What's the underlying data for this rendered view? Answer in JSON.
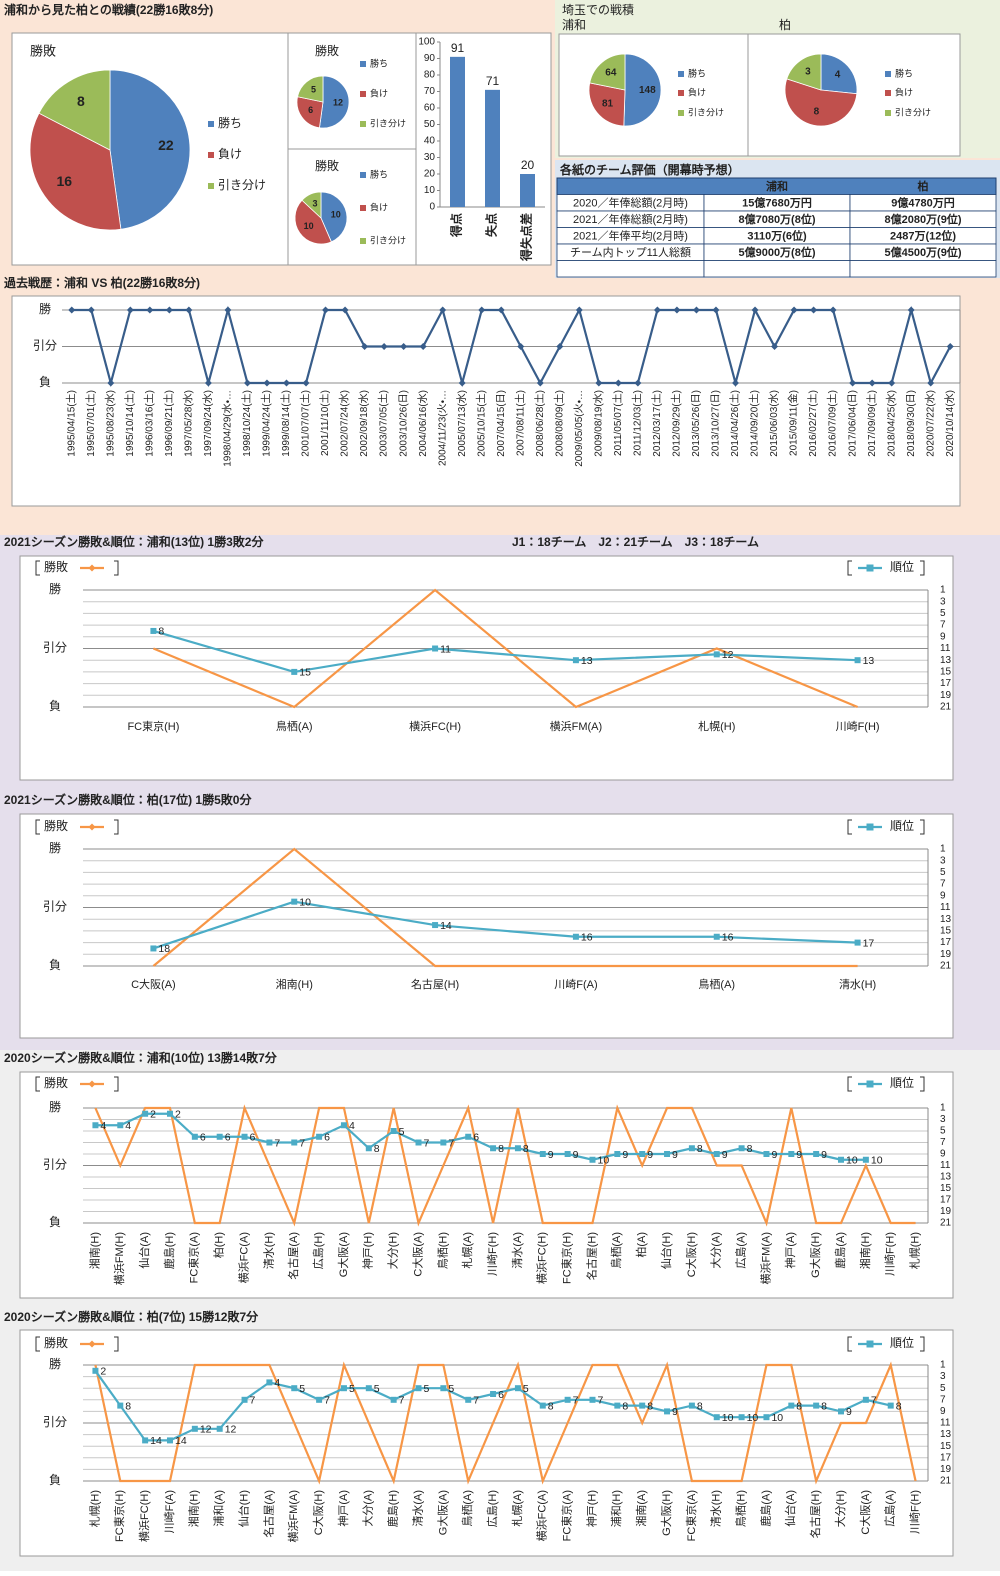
{
  "headings": {
    "top": "浦和から見た柏との戦績(22勝16敗8分)",
    "saitama": "埼玉での戦積"
  },
  "table": {
    "title": "各紙のチーム評価（開幕時予想）",
    "columns": [
      "浦和",
      "柏"
    ],
    "rows": [
      [
        "2020／年俸総額(2月時)",
        "15億7680万円",
        "9億4780万円"
      ],
      [
        "2021／年俸総額(2月時)",
        "8億7080万(8位)",
        "8億2080万(9位)"
      ],
      [
        "2021／年俸平均(2月時)",
        "3110万(6位)",
        "2487万(12位)"
      ],
      [
        "チーム内トップ11人総額",
        "5億9000万(8位)",
        "5億4500万(9位)"
      ]
    ]
  },
  "chart_data": [
    {
      "type": "pie",
      "title": "勝敗",
      "categories": [
        "勝ち",
        "負け",
        "引き分け"
      ],
      "values": [
        22,
        16,
        8
      ],
      "colors": [
        "#4f81bd",
        "#c0504d",
        "#9bbb59"
      ]
    },
    {
      "type": "pie",
      "title": "勝敗",
      "categories": [
        "勝ち",
        "負け",
        "引き分け"
      ],
      "values": [
        12,
        6,
        5
      ],
      "colors": [
        "#4f81bd",
        "#c0504d",
        "#9bbb59"
      ]
    },
    {
      "type": "pie",
      "title": "勝敗",
      "categories": [
        "勝ち",
        "負け",
        "引き分け"
      ],
      "values": [
        10,
        10,
        3
      ],
      "colors": [
        "#4f81bd",
        "#c0504d",
        "#9bbb59"
      ]
    },
    {
      "type": "bar",
      "categories": [
        "得点",
        "失点",
        "得失点差"
      ],
      "values": [
        91,
        71,
        20
      ],
      "color": "#4f81bd",
      "ylim": [
        0,
        100
      ],
      "yticks": [
        0,
        10,
        20,
        30,
        40,
        50,
        60,
        70,
        80,
        90,
        100
      ]
    },
    {
      "type": "pie",
      "title": "浦和",
      "categories": [
        "勝ち",
        "負け",
        "引き分け"
      ],
      "values": [
        148,
        81,
        64
      ],
      "colors": [
        "#4f81bd",
        "#c0504d",
        "#9bbb59"
      ]
    },
    {
      "type": "pie",
      "title": "柏",
      "categories": [
        "勝ち",
        "負け",
        "引き分け"
      ],
      "values": [
        4,
        8,
        3
      ],
      "colors": [
        "#4f81bd",
        "#c0504d",
        "#9bbb59"
      ]
    },
    {
      "type": "line",
      "title": "過去戦歴：浦和 VS 柏(22勝16敗8分)",
      "color": "#385d8a",
      "marker": "diamond",
      "grid": true,
      "ylim": [
        0,
        2
      ],
      "yticks": [
        {
          "value": 0,
          "label": "負"
        },
        {
          "value": 1,
          "label": "引分"
        },
        {
          "value": 2,
          "label": "勝"
        }
      ],
      "categories": [
        "1995/04/15(土)",
        "1995/07/01(土)",
        "1995/08/23(水)",
        "1995/10/14(土)",
        "1996/03/16(土)",
        "1996/09/21(土)",
        "1997/05/28(水)",
        "1997/09/24(水)",
        "1998/04/29(水・…",
        "1998/10/24(土)",
        "1999/04/24(土)",
        "1999/08/14(土)",
        "2001/07/07(土)",
        "2001/11/10(土)",
        "2002/07/24(水)",
        "2002/09/18(水)",
        "2003/07/05(土)",
        "2003/10/26(日)",
        "2004/06/16(水)",
        "2004/11/23(火・…",
        "2005/07/13(水)",
        "2005/10/15(土)",
        "2007/04/15(日)",
        "2007/08/11(土)",
        "2008/06/28(土)",
        "2008/08/09(土)",
        "2009/05/05(火・…",
        "2009/08/19(水)",
        "2011/05/07(土)",
        "2011/12/03(土)",
        "2012/03/17(土)",
        "2012/09/29(土)",
        "2013/05/26(日)",
        "2013/10/27(日)",
        "2014/04/26(土)",
        "2014/09/20(土)",
        "2015/06/03(水)",
        "2015/09/11(金)",
        "2016/02/27(土)",
        "2016/07/09(土)",
        "2017/06/04(日)",
        "2017/09/09(土)",
        "2018/04/25(水)",
        "2018/09/30(日)",
        "2020/07/22(水)",
        "2020/10/14(水)"
      ],
      "values": [
        2,
        2,
        0,
        2,
        2,
        2,
        2,
        0,
        2,
        0,
        0,
        0,
        0,
        2,
        2,
        1,
        1,
        1,
        1,
        2,
        0,
        2,
        2,
        1,
        0,
        1,
        2,
        0,
        0,
        0,
        2,
        2,
        2,
        2,
        0,
        2,
        1,
        2,
        2,
        2,
        0,
        0,
        0,
        2,
        0,
        1
      ]
    },
    {
      "type": "line",
      "title": "2021シーズン勝敗&順位：浦和(13位) 1勝3敗2分",
      "annotation": "J1：18チーム　J2：21チーム　J3：18チーム",
      "grid": true,
      "ylim": [
        0,
        2
      ],
      "yticks": [
        {
          "value": 0,
          "label": "負"
        },
        {
          "value": 1,
          "label": "引分"
        },
        {
          "value": 2,
          "label": "勝"
        }
      ],
      "y2lim": [
        21,
        1
      ],
      "y2ticks": [
        1,
        3,
        5,
        7,
        9,
        11,
        13,
        15,
        17,
        19,
        21
      ],
      "categories": [
        "FC東京(H)",
        "鳥栖(A)",
        "横浜FC(H)",
        "横浜FM(A)",
        "札幌(H)",
        "川崎F(H)"
      ],
      "series": [
        {
          "name": "勝敗",
          "color": "#f79646",
          "marker": "diamond",
          "values": [
            1,
            0,
            2,
            0,
            1,
            0
          ]
        },
        {
          "name": "順位",
          "color": "#4bacc6",
          "marker": "square",
          "axis": "y2",
          "data_labels": true,
          "values": [
            8,
            15,
            11,
            13,
            12,
            13
          ]
        }
      ]
    },
    {
      "type": "line",
      "title": "2021シーズン勝敗&順位：柏(17位) 1勝5敗0分",
      "grid": true,
      "ylim": [
        0,
        2
      ],
      "yticks": [
        {
          "value": 0,
          "label": "負"
        },
        {
          "value": 1,
          "label": "引分"
        },
        {
          "value": 2,
          "label": "勝"
        }
      ],
      "y2lim": [
        21,
        1
      ],
      "y2ticks": [
        1,
        3,
        5,
        7,
        9,
        11,
        13,
        15,
        17,
        19,
        21
      ],
      "categories": [
        "C大阪(A)",
        "湘南(H)",
        "名古屋(H)",
        "川崎F(A)",
        "鳥栖(A)",
        "清水(H)"
      ],
      "series": [
        {
          "name": "勝敗",
          "color": "#f79646",
          "marker": "diamond",
          "values": [
            0,
            2,
            0,
            0,
            0,
            0
          ]
        },
        {
          "name": "順位",
          "color": "#4bacc6",
          "marker": "square",
          "axis": "y2",
          "data_labels": true,
          "values": [
            18,
            10,
            14,
            16,
            16,
            17
          ]
        }
      ]
    },
    {
      "type": "line",
      "title": "2020シーズン勝敗&順位：浦和(10位) 13勝14敗7分",
      "grid": true,
      "ylim": [
        0,
        2
      ],
      "yticks": [
        {
          "value": 0,
          "label": "負"
        },
        {
          "value": 1,
          "label": "引分"
        },
        {
          "value": 2,
          "label": "勝"
        }
      ],
      "y2lim": [
        21,
        1
      ],
      "y2ticks": [
        1,
        3,
        5,
        7,
        9,
        11,
        13,
        15,
        17,
        19,
        21
      ],
      "categories": [
        "湘南(H)",
        "横浜FM(H)",
        "仙台(A)",
        "鹿島(H)",
        "FC東京(A)",
        "柏(H)",
        "横浜FC(A)",
        "清水(H)",
        "名古屋(A)",
        "広島(H)",
        "G大阪(A)",
        "神戸(H)",
        "大分(H)",
        "C大阪(A)",
        "鳥栖(H)",
        "札幌(A)",
        "川崎F(H)",
        "清水(A)",
        "横浜FC(H)",
        "FC東京(H)",
        "名古屋(H)",
        "鳥栖(A)",
        "柏(A)",
        "仙台(H)",
        "C大阪(H)",
        "大分(A)",
        "広島(A)",
        "横浜FM(A)",
        "神戸(A)",
        "G大阪(H)",
        "鹿島(A)",
        "湘南(H)",
        "川崎F(H)",
        "札幌(H)"
      ],
      "series": [
        {
          "name": "勝敗",
          "color": "#f79646",
          "marker": "diamond",
          "values": [
            2,
            1,
            2,
            2,
            0,
            0,
            2,
            1,
            0,
            2,
            2,
            0,
            2,
            0,
            1,
            2,
            0,
            2,
            0,
            0,
            0,
            2,
            1,
            2,
            2,
            1,
            1,
            0,
            2,
            0,
            0,
            1,
            0,
            0
          ]
        },
        {
          "name": "順位",
          "color": "#4bacc6",
          "marker": "square",
          "axis": "y2",
          "data_labels": true,
          "values": [
            4,
            4,
            2,
            2,
            6,
            6,
            6,
            7,
            7,
            6,
            4,
            8,
            5,
            7,
            7,
            6,
            8,
            8,
            9,
            9,
            10,
            9,
            9,
            9,
            8,
            9,
            8,
            9,
            9,
            9,
            10,
            10,
            null,
            null
          ]
        }
      ]
    },
    {
      "type": "line",
      "title": "2020シーズン勝敗&順位：柏(7位) 15勝12敗7分",
      "grid": true,
      "ylim": [
        0,
        2
      ],
      "yticks": [
        {
          "value": 0,
          "label": "負"
        },
        {
          "value": 1,
          "label": "引分"
        },
        {
          "value": 2,
          "label": "勝"
        }
      ],
      "y2lim": [
        21,
        1
      ],
      "y2ticks": [
        1,
        3,
        5,
        7,
        9,
        11,
        13,
        15,
        17,
        19,
        21
      ],
      "categories": [
        "札幌(H)",
        "FC東京(H)",
        "横浜FC(H)",
        "川崎F(A)",
        "湘南(H)",
        "浦和(A)",
        "仙台(H)",
        "名古屋(A)",
        "横浜FM(A)",
        "C大阪(H)",
        "神戸(A)",
        "大分(A)",
        "鹿島(H)",
        "清水(A)",
        "G大阪(A)",
        "鳥栖(A)",
        "広島(H)",
        "札幌(A)",
        "横浜FC(A)",
        "FC東京(A)",
        "神戸(H)",
        "浦和(H)",
        "湘南(A)",
        "G大阪(H)",
        "FC東京(A)",
        "清水(H)",
        "鳥栖(H)",
        "鹿島(A)",
        "仙台(A)",
        "名古屋(H)",
        "大分(H)",
        "C大阪(A)",
        "広島(A)",
        "川崎F(H)"
      ],
      "series": [
        {
          "name": "勝敗",
          "color": "#f79646",
          "marker": "diamond",
          "values": [
            2,
            0,
            0,
            0,
            2,
            2,
            2,
            2,
            1,
            0,
            2,
            1,
            0,
            2,
            2,
            0,
            1,
            2,
            0,
            1,
            2,
            2,
            1,
            2,
            0,
            0,
            0,
            2,
            2,
            0,
            1,
            1,
            2,
            0
          ]
        },
        {
          "name": "順位",
          "color": "#4bacc6",
          "marker": "square",
          "axis": "y2",
          "data_labels": true,
          "values": [
            2,
            8,
            14,
            14,
            12,
            12,
            7,
            4,
            5,
            7,
            5,
            5,
            7,
            5,
            5,
            7,
            6,
            5,
            8,
            7,
            7,
            8,
            8,
            9,
            8,
            10,
            10,
            10,
            8,
            8,
            9,
            7,
            8,
            null
          ]
        }
      ]
    }
  ]
}
